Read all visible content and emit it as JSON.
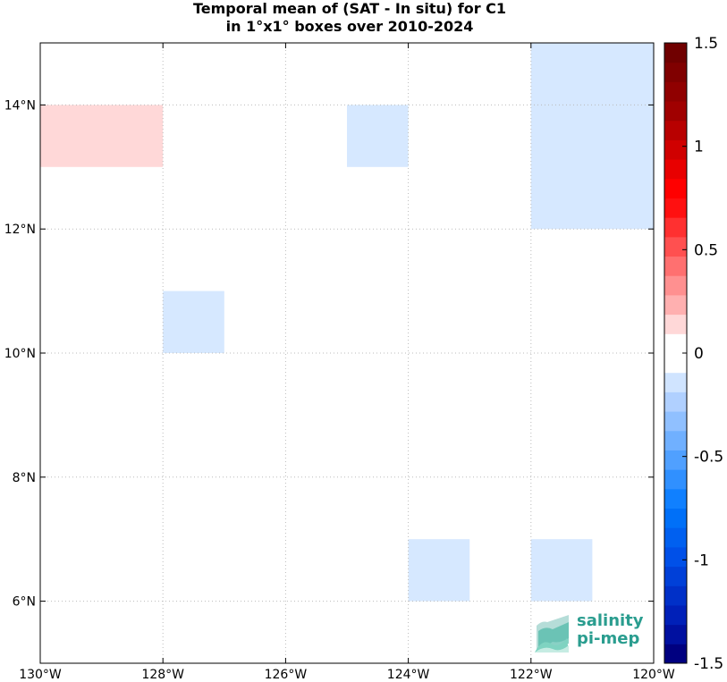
{
  "title": {
    "line1": "Temporal mean of (SAT - In situ) for C1",
    "line2": "in 1°x1° boxes over 2010-2024"
  },
  "map": {
    "lon_range": [
      -130,
      -120
    ],
    "lat_range": [
      5,
      15
    ],
    "grid": "dotted",
    "x_tick_labels": [
      {
        "lon": -130,
        "label": "130°W"
      },
      {
        "lon": -128,
        "label": "128°W"
      },
      {
        "lon": -126,
        "label": "126°W"
      },
      {
        "lon": -124,
        "label": "124°W"
      },
      {
        "lon": -122,
        "label": "122°W"
      },
      {
        "lon": -120,
        "label": "120°W"
      }
    ],
    "y_tick_labels": [
      {
        "lat": 6,
        "label": "6°N"
      },
      {
        "lat": 8,
        "label": "8°N"
      },
      {
        "lat": 10,
        "label": "10°N"
      },
      {
        "lat": 12,
        "label": "12°N"
      },
      {
        "lat": 14,
        "label": "14°N"
      }
    ],
    "cells": [
      {
        "lon0": -130,
        "lon1": -128,
        "lat0": 13,
        "lat1": 14,
        "value": 0.1
      },
      {
        "lon0": -125,
        "lon1": -124,
        "lat0": 13,
        "lat1": 14,
        "value": -0.1
      },
      {
        "lon0": -122,
        "lon1": -120,
        "lat0": 12,
        "lat1": 15,
        "value": -0.1
      },
      {
        "lon0": -128,
        "lon1": -127,
        "lat0": 10,
        "lat1": 11,
        "value": -0.1
      },
      {
        "lon0": -124,
        "lon1": -123,
        "lat0": 6,
        "lat1": 7,
        "value": -0.1
      },
      {
        "lon0": -122,
        "lon1": -121,
        "lat0": 6,
        "lat1": 7,
        "value": -0.1
      }
    ]
  },
  "colorbar": {
    "range": [
      -1.5,
      1.5
    ],
    "colors": [
      "#000080",
      "#0010a0",
      "#0020b8",
      "#0030c8",
      "#0040d8",
      "#0050e8",
      "#0060f0",
      "#0070f8",
      "#1080ff",
      "#3090ff",
      "#50a0ff",
      "#70b0ff",
      "#90c0ff",
      "#b0d0ff",
      "#d0e4ff",
      "#ffffff",
      "#ffffff",
      "#ffd8d8",
      "#ffb0b0",
      "#ff9090",
      "#ff7070",
      "#ff5050",
      "#ff3030",
      "#ff1010",
      "#ff0000",
      "#e80000",
      "#d00000",
      "#b80000",
      "#a00000",
      "#900000",
      "#800000",
      "#700000"
    ],
    "ticks": [
      {
        "value": 1.5,
        "label": "1.5"
      },
      {
        "value": 1,
        "label": "1"
      },
      {
        "value": 0.5,
        "label": "0.5"
      },
      {
        "value": 0,
        "label": "0"
      },
      {
        "value": -0.5,
        "label": "-0.5"
      },
      {
        "value": -1,
        "label": "-1"
      },
      {
        "value": -1.5,
        "label": "-1.5"
      }
    ]
  },
  "logo": {
    "line1": "salinity",
    "line2": "pi-mep",
    "color": "#2a9d8f"
  }
}
